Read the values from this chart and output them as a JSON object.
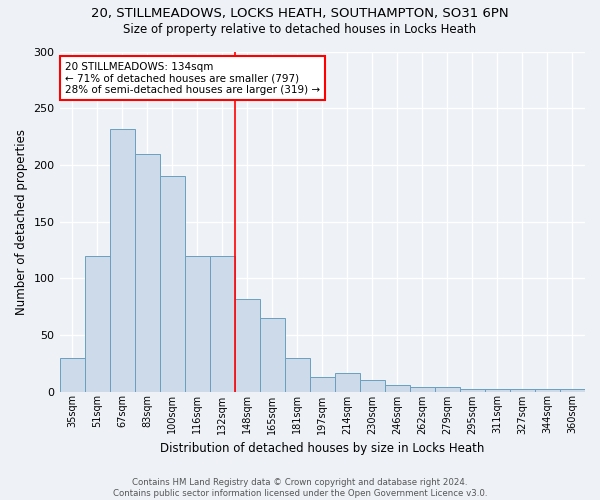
{
  "title1": "20, STILLMEADOWS, LOCKS HEATH, SOUTHAMPTON, SO31 6PN",
  "title2": "Size of property relative to detached houses in Locks Heath",
  "xlabel": "Distribution of detached houses by size in Locks Heath",
  "ylabel": "Number of detached properties",
  "bar_labels": [
    "35sqm",
    "51sqm",
    "67sqm",
    "83sqm",
    "100sqm",
    "116sqm",
    "132sqm",
    "148sqm",
    "165sqm",
    "181sqm",
    "197sqm",
    "214sqm",
    "230sqm",
    "246sqm",
    "262sqm",
    "279sqm",
    "295sqm",
    "311sqm",
    "327sqm",
    "344sqm",
    "360sqm"
  ],
  "bar_values": [
    30,
    120,
    232,
    210,
    190,
    120,
    120,
    82,
    65,
    30,
    13,
    16,
    10,
    6,
    4,
    4,
    2,
    2,
    2,
    2,
    2
  ],
  "bar_color": "#cddaea",
  "bar_edge_color": "#6a9fc0",
  "vline_color": "red",
  "annotation_text": "20 STILLMEADOWS: 134sqm\n← 71% of detached houses are smaller (797)\n28% of semi-detached houses are larger (319) →",
  "annotation_box_color": "white",
  "annotation_box_edge": "red",
  "ylim": [
    0,
    300
  ],
  "yticks": [
    0,
    50,
    100,
    150,
    200,
    250,
    300
  ],
  "footer1": "Contains HM Land Registry data © Crown copyright and database right 2024.",
  "footer2": "Contains public sector information licensed under the Open Government Licence v3.0.",
  "bg_color": "#eef2f7"
}
